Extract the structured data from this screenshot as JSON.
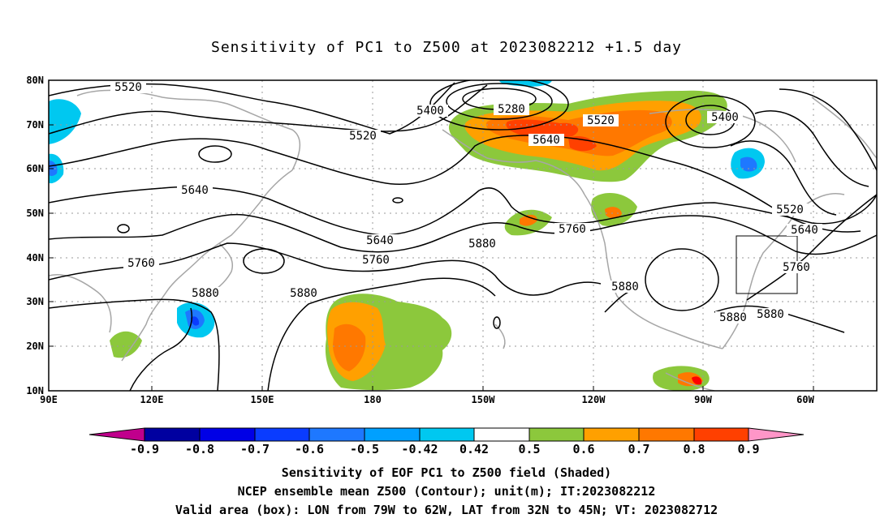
{
  "title": "Sensitivity of PC1 to Z500 at 2023082212 +1.5 day",
  "lat_labels": [
    "80N",
    "70N",
    "60N",
    "50N",
    "40N",
    "30N",
    "20N",
    "10N"
  ],
  "lon_labels": [
    "90E",
    "120E",
    "150E",
    "180",
    "150W",
    "120W",
    "90W",
    "60W"
  ],
  "contour_labels": [
    "5520",
    "5400",
    "5280",
    "5520",
    "5400",
    "5520",
    "5640",
    "5640",
    "5520",
    "5640",
    "5640",
    "5760",
    "5760",
    "5880",
    "5760",
    "5880",
    "5880",
    "5880",
    "5880",
    "5880",
    "5760",
    "5640"
  ],
  "colorbar": {
    "labels": [
      "-0.9",
      "-0.8",
      "-0.7",
      "-0.6",
      "-0.5",
      "-0.42",
      "0.42",
      "0.5",
      "0.6",
      "0.7",
      "0.8",
      "0.9"
    ],
    "colors": [
      "#c0008c",
      "#0000a0",
      "#0000e6",
      "#0a3cff",
      "#1e78ff",
      "#00a0ff",
      "#00c8f0",
      "#ffffff",
      "#8cc83c",
      "#ffa000",
      "#ff7800",
      "#ff4000",
      "#ff0000",
      "#ff96c8"
    ]
  },
  "captions": [
    "Sensitivity of EOF PC1 to Z500 field (Shaded)",
    "NCEP ensemble mean Z500 (Contour); unit(m); IT:2023082212",
    "Valid area (box): LON from 79W to 62W, LAT from 32N to 45N; VT: 2023082712"
  ],
  "map": {
    "lon_range": [
      90,
      310
    ],
    "lat_range": [
      10,
      80
    ],
    "grid": "dotted",
    "valid_box": {
      "lon": [
        281,
        298
      ],
      "lat": [
        32,
        45
      ]
    }
  }
}
